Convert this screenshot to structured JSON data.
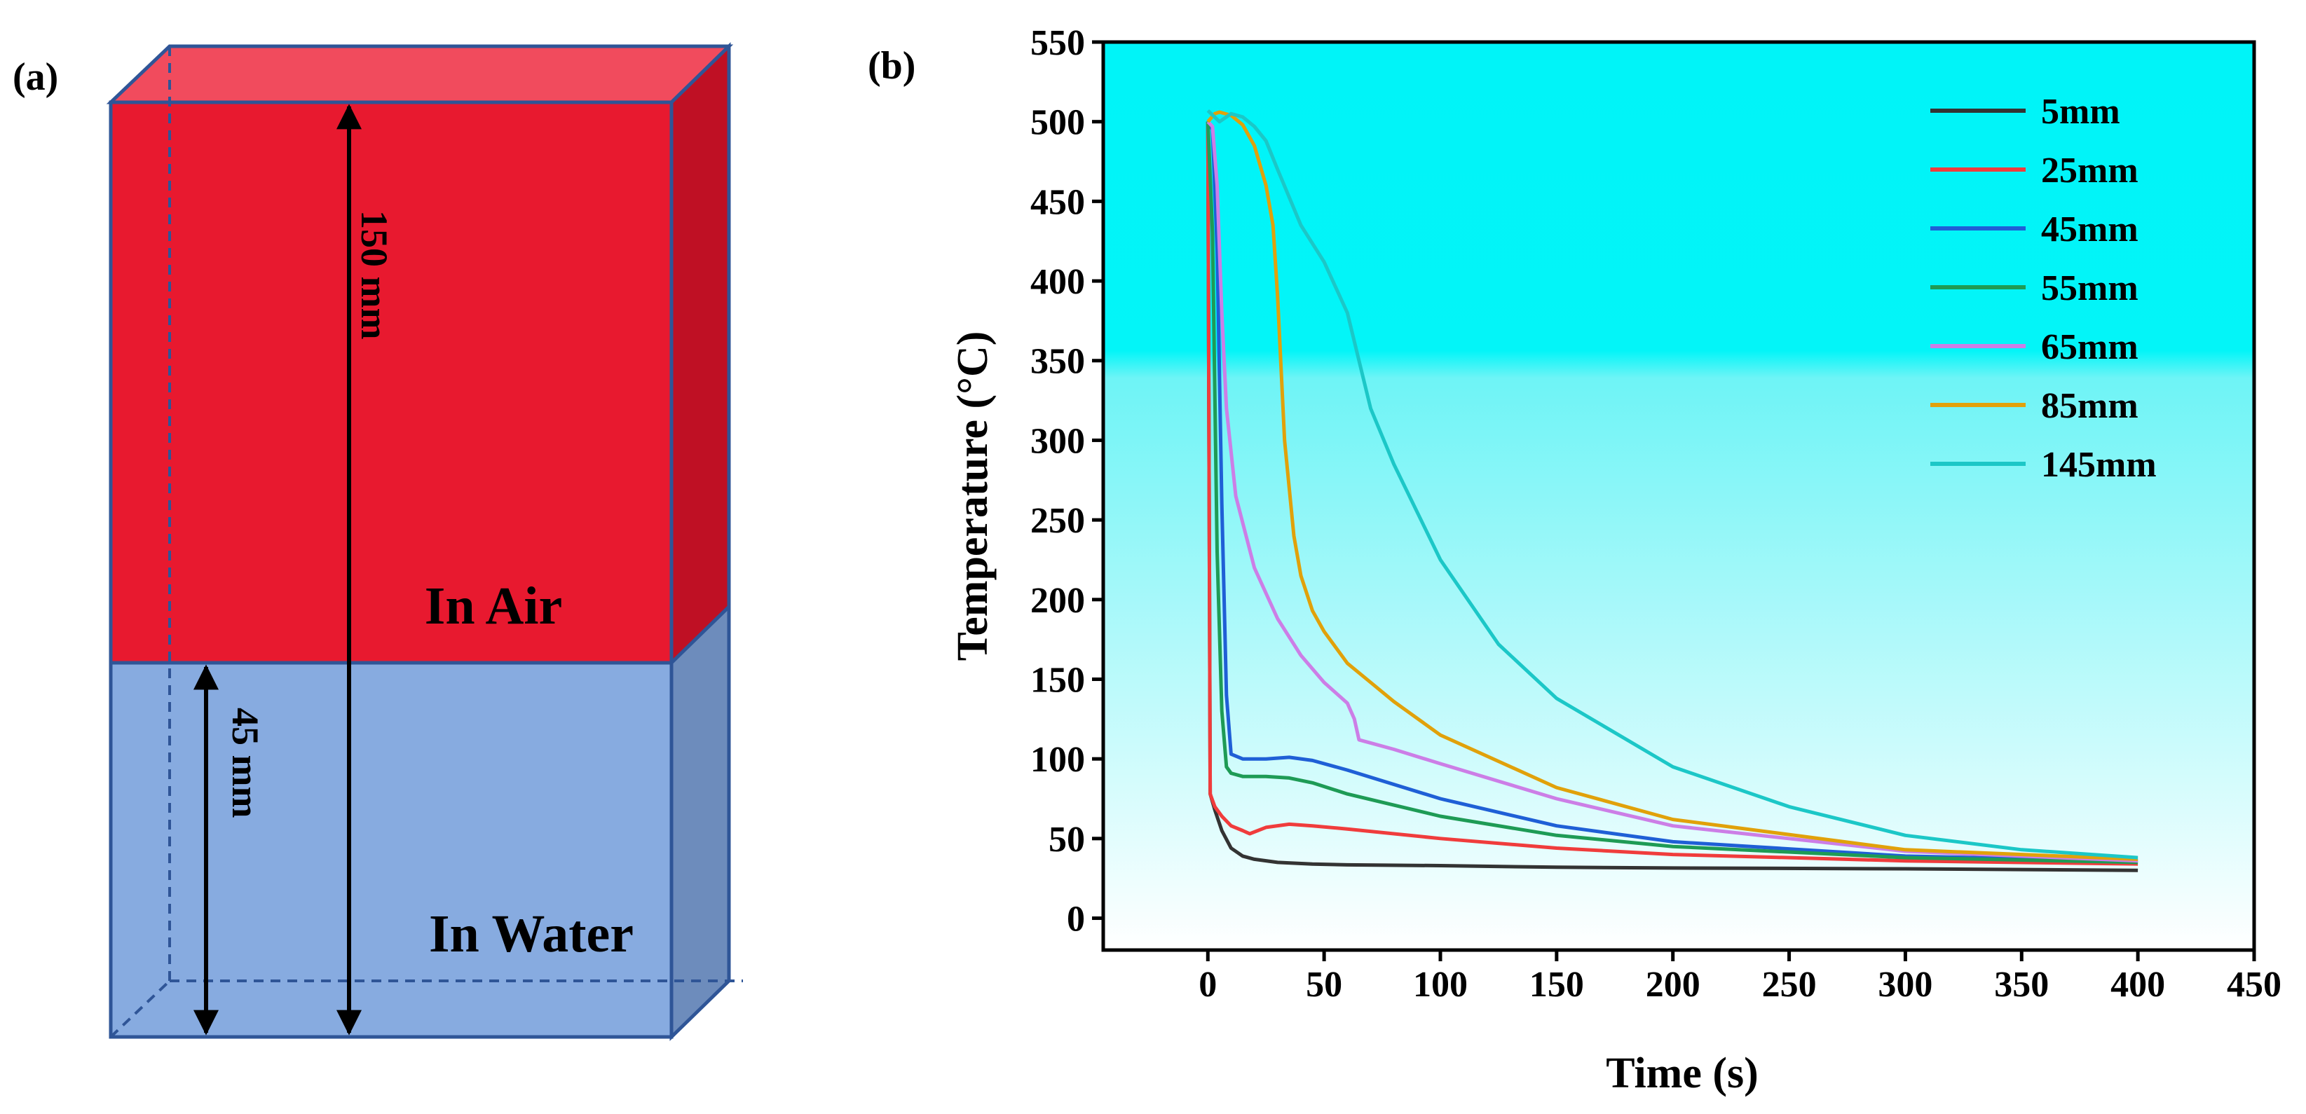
{
  "panel_a": {
    "label": "(a)",
    "air_label": "In Air",
    "water_label": "In Water",
    "total_height_label": "150 mm",
    "water_height_label": "45 mm",
    "colors": {
      "air_front": "#e8192f",
      "air_top": "#f14b5d",
      "air_side": "#bf1024",
      "water_front": "#87abe0",
      "water_side": "#6d8cbc",
      "edge": "#2f5597"
    }
  },
  "panel_b": {
    "label": "(b)"
  },
  "chart_data": {
    "type": "line",
    "title": "",
    "xlabel": "Time (s)",
    "ylabel": "Temperature (°C)",
    "xlim": [
      -45,
      450
    ],
    "ylim": [
      -20,
      550
    ],
    "xticks": [
      0,
      50,
      100,
      150,
      200,
      250,
      300,
      350,
      400,
      450
    ],
    "yticks": [
      0,
      50,
      100,
      150,
      200,
      250,
      300,
      350,
      400,
      450,
      500,
      550
    ],
    "legend_position": "top-right",
    "background": "cyan-to-white vertical gradient",
    "series": [
      {
        "name": "5mm",
        "color": "#333333",
        "x": [
          0,
          1,
          3,
          6,
          10,
          15,
          20,
          30,
          45,
          60,
          100,
          150,
          200,
          300,
          400
        ],
        "y": [
          500,
          78,
          68,
          55,
          44,
          39,
          37,
          35,
          34,
          33.5,
          33,
          32,
          31.5,
          31,
          30
        ]
      },
      {
        "name": "25mm",
        "color": "#f03c3c",
        "x": [
          0,
          1,
          3,
          6,
          10,
          15,
          18,
          25,
          35,
          45,
          60,
          100,
          150,
          200,
          300,
          400
        ],
        "y": [
          500,
          78,
          70,
          64,
          58,
          55,
          53,
          57,
          59,
          58,
          56,
          50,
          44,
          40,
          36,
          34
        ]
      },
      {
        "name": "45mm",
        "color": "#1f5fd6",
        "x": [
          0,
          2,
          4,
          6,
          8,
          10,
          15,
          25,
          35,
          45,
          60,
          100,
          150,
          200,
          300,
          400
        ],
        "y": [
          500,
          495,
          420,
          260,
          140,
          103,
          100,
          100,
          101,
          99,
          93,
          75,
          58,
          48,
          39,
          36
        ]
      },
      {
        "name": "55mm",
        "color": "#1e9b55",
        "x": [
          0,
          2,
          4,
          6,
          8,
          10,
          15,
          25,
          35,
          45,
          60,
          100,
          150,
          200,
          300,
          400
        ],
        "y": [
          500,
          430,
          230,
          130,
          95,
          91,
          89,
          89,
          88,
          85,
          78,
          64,
          52,
          45,
          38,
          35
        ]
      },
      {
        "name": "65mm",
        "color": "#cc7ee6",
        "x": [
          0,
          2,
          4,
          6,
          8,
          12,
          20,
          30,
          40,
          50,
          60,
          63,
          65,
          70,
          80,
          100,
          150,
          200,
          300,
          400
        ],
        "y": [
          500,
          497,
          460,
          380,
          320,
          265,
          220,
          188,
          165,
          148,
          135,
          125,
          112,
          110,
          106,
          97,
          75,
          58,
          42,
          36
        ]
      },
      {
        "name": "85mm",
        "color": "#e1a10a",
        "x": [
          0,
          3,
          5,
          10,
          15,
          20,
          25,
          28,
          30,
          33,
          37,
          40,
          45,
          50,
          55,
          60,
          70,
          80,
          100,
          150,
          200,
          300,
          400
        ],
        "y": [
          500,
          505,
          506,
          504,
          498,
          485,
          460,
          435,
          390,
          300,
          240,
          215,
          193,
          180,
          170,
          160,
          148,
          136,
          115,
          82,
          62,
          43,
          37
        ]
      },
      {
        "name": "145mm",
        "color": "#1cc7c7",
        "x": [
          0,
          5,
          10,
          15,
          20,
          25,
          30,
          40,
          50,
          60,
          70,
          80,
          100,
          125,
          150,
          200,
          250,
          300,
          350,
          400
        ],
        "y": [
          507,
          500,
          505,
          503,
          497,
          488,
          470,
          435,
          412,
          380,
          320,
          285,
          225,
          172,
          138,
          95,
          70,
          52,
          43,
          38
        ]
      }
    ]
  }
}
